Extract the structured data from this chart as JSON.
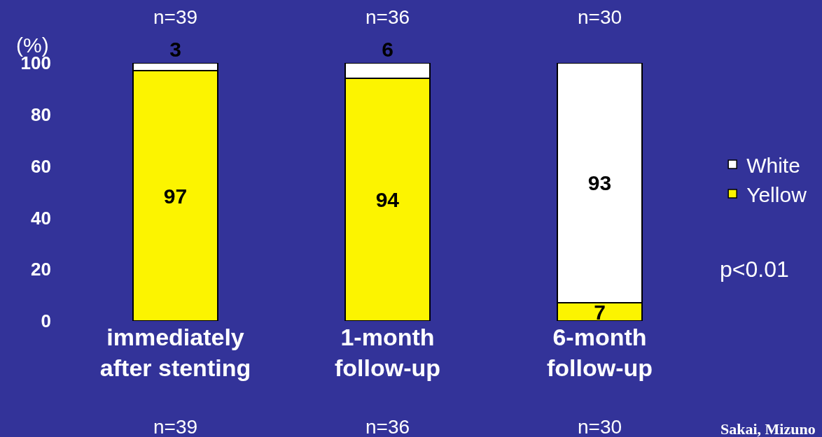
{
  "chart_data": {
    "type": "bar",
    "stacked": true,
    "ylabel": "(%)",
    "categories": [
      "immediately\nafter stenting",
      "1-month\nfollow-up",
      "6-month\nfollow-up"
    ],
    "series": [
      {
        "name": "Yellow",
        "color": "#fcf400",
        "values": [
          97,
          94,
          7
        ]
      },
      {
        "name": "White",
        "color": "#ffffff",
        "values": [
          3,
          6,
          93
        ]
      }
    ],
    "ylim": [
      0,
      100
    ],
    "yticks": [
      0,
      20,
      40,
      60,
      80,
      100
    ],
    "grid": false,
    "legend": "right",
    "data_labels": true,
    "annotations": [
      "n=39",
      "n=36",
      "n=30",
      "n=39",
      "n=36",
      "n=30",
      "p<0.01",
      "Sakai, Mizuno"
    ]
  }
}
